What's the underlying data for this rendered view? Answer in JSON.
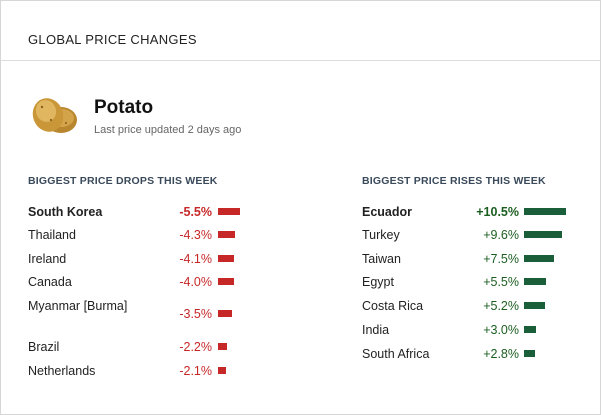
{
  "header": {
    "title": "GLOBAL PRICE CHANGES"
  },
  "product": {
    "name": "Potato",
    "updated": "Last price updated 2 days ago",
    "icon": "potato-icon"
  },
  "colors": {
    "drop": "#c62828",
    "rise": "#1b5e3a"
  },
  "drops": {
    "title": "BIGGEST PRICE DROPS THIS WEEK",
    "rows": [
      {
        "country": "South Korea",
        "change": "-5.5%",
        "value": -5.5,
        "highlight": true
      },
      {
        "country": "Thailand",
        "change": "-4.3%",
        "value": -4.3
      },
      {
        "country": "Ireland",
        "change": "-4.1%",
        "value": -4.1
      },
      {
        "country": "Canada",
        "change": "-4.0%",
        "value": -4.0
      },
      {
        "country": "Myanmar [Burma]",
        "change": "-3.5%",
        "value": -3.5
      },
      {
        "country": "Brazil",
        "change": "-2.2%",
        "value": -2.2
      },
      {
        "country": "Netherlands",
        "change": "-2.1%",
        "value": -2.1
      }
    ]
  },
  "rises": {
    "title": "BIGGEST PRICE RISES THIS WEEK",
    "rows": [
      {
        "country": "Ecuador",
        "change": "+10.5%",
        "value": 10.5,
        "highlight": true
      },
      {
        "country": "Turkey",
        "change": "+9.6%",
        "value": 9.6
      },
      {
        "country": "Taiwan",
        "change": "+7.5%",
        "value": 7.5
      },
      {
        "country": "Egypt",
        "change": "+5.5%",
        "value": 5.5
      },
      {
        "country": "Costa Rica",
        "change": "+5.2%",
        "value": 5.2
      },
      {
        "country": "India",
        "change": "+3.0%",
        "value": 3.0
      },
      {
        "country": "South Africa",
        "change": "+2.8%",
        "value": 2.8
      }
    ]
  }
}
